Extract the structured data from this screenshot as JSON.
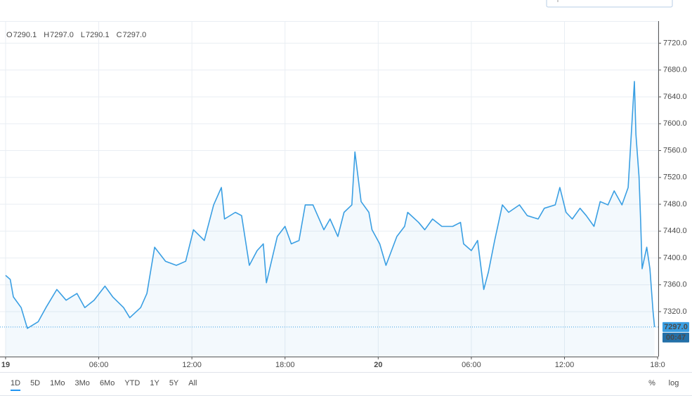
{
  "chart_data": {
    "type": "area",
    "ohlc": [
      {
        "label": "O",
        "value": "7290.1"
      },
      {
        "label": "H",
        "value": "7297.0"
      },
      {
        "label": "L",
        "value": "7290.1"
      },
      {
        "label": "C",
        "value": "7297.0"
      }
    ],
    "x": [
      0,
      0.3,
      0.5,
      1.0,
      1.4,
      2.1,
      2.6,
      3.3,
      3.9,
      4.6,
      5.1,
      5.7,
      6.4,
      6.9,
      7.6,
      8.0,
      8.7,
      9.1,
      9.6,
      10.3,
      11.0,
      11.6,
      12.1,
      12.8,
      13.4,
      13.9,
      14.1,
      14.8,
      15.2,
      15.7,
      16.2,
      16.6,
      16.8,
      17.5,
      18.0,
      18.4,
      18.9,
      19.3,
      19.8,
      20.5,
      20.9,
      21.4,
      21.8,
      22.3,
      22.5,
      22.9,
      23.4,
      23.6,
      24.1,
      24.5,
      25.2,
      25.7,
      25.9,
      26.6,
      27.0,
      27.5,
      28.1,
      28.8,
      29.3,
      29.5,
      30.0,
      30.4,
      30.8,
      31.1,
      31.5,
      32.0,
      32.4,
      33.1,
      33.6,
      34.3,
      34.7,
      35.4,
      35.7,
      36.1,
      36.5,
      37.0,
      37.4,
      37.9,
      38.3,
      38.8,
      39.2,
      39.7,
      40.1,
      40.5,
      40.6,
      40.8,
      40.9,
      41.0,
      41.3,
      41.5,
      41.7,
      41.8
    ],
    "values": [
      7374,
      7368,
      7342,
      7326,
      7295,
      7305,
      7326,
      7353,
      7337,
      7347,
      7326,
      7337,
      7358,
      7342,
      7326,
      7311,
      7326,
      7347,
      7416,
      7395,
      7389,
      7395,
      7442,
      7426,
      7479,
      7505,
      7458,
      7468,
      7463,
      7389,
      7411,
      7421,
      7363,
      7432,
      7447,
      7421,
      7426,
      7479,
      7479,
      7442,
      7458,
      7432,
      7468,
      7479,
      7558,
      7484,
      7468,
      7442,
      7421,
      7389,
      7432,
      7447,
      7468,
      7453,
      7442,
      7458,
      7447,
      7447,
      7453,
      7421,
      7411,
      7426,
      7353,
      7379,
      7426,
      7479,
      7468,
      7479,
      7463,
      7458,
      7474,
      7479,
      7505,
      7468,
      7458,
      7474,
      7463,
      7447,
      7484,
      7479,
      7500,
      7479,
      7505,
      7663,
      7584,
      7521,
      7458,
      7384,
      7416,
      7384,
      7321,
      7297
    ],
    "color": "#3a9fe3",
    "xlim": [
      -0.36,
      42.04
    ],
    "xticks": [
      {
        "value": 0,
        "label": "19"
      },
      {
        "value": 6,
        "label": "06:00"
      },
      {
        "value": 12,
        "label": "12:00"
      },
      {
        "value": 18,
        "label": "18:00"
      },
      {
        "value": 24,
        "label": "20"
      },
      {
        "value": 30,
        "label": "06:00"
      },
      {
        "value": 36,
        "label": "12:00"
      },
      {
        "value": 42,
        "label": "18:0"
      }
    ],
    "ylim": [
      7253,
      7753
    ],
    "yticks": [
      {
        "value": 7320,
        "label": "7320.0"
      },
      {
        "value": 7360,
        "label": "7360.0"
      },
      {
        "value": 7400,
        "label": "7400.0"
      },
      {
        "value": 7440,
        "label": "7440.0"
      },
      {
        "value": 7480,
        "label": "7480.0"
      },
      {
        "value": 7520,
        "label": "7520.0"
      },
      {
        "value": 7560,
        "label": "7560.0"
      },
      {
        "value": 7600,
        "label": "7600.0"
      },
      {
        "value": 7640,
        "label": "7640.0"
      },
      {
        "value": 7680,
        "label": "7680.0"
      },
      {
        "value": 7720,
        "label": "7720.0"
      }
    ],
    "grid": true,
    "last_price": {
      "value": 7297,
      "label": "7297.0"
    },
    "countdown": "00:47",
    "ranges": [
      "1D",
      "5D",
      "1Mo",
      "3Mo",
      "6Mo",
      "YTD",
      "1Y",
      "5Y",
      "All"
    ],
    "scale_options": [
      "%",
      "log"
    ]
  }
}
